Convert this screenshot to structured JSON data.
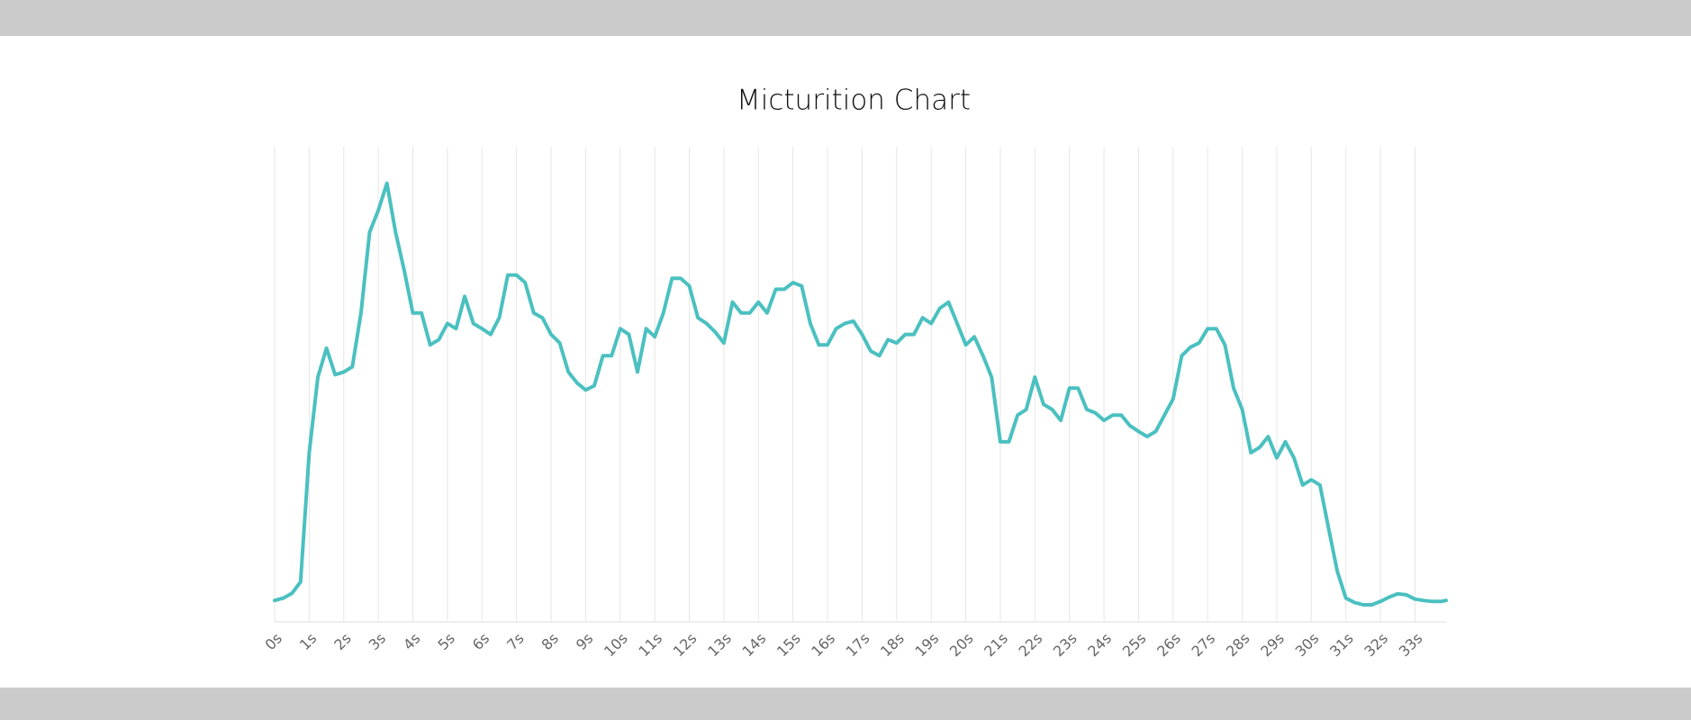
{
  "chart_data": {
    "type": "line",
    "title": "Micturition Chart",
    "x": [
      0,
      0.25,
      0.5,
      0.75,
      1,
      1.25,
      1.5,
      1.75,
      2,
      2.25,
      2.5,
      2.75,
      3,
      3.25,
      3.5,
      3.75,
      4,
      4.25,
      4.5,
      4.75,
      5,
      5.25,
      5.5,
      5.75,
      6,
      6.25,
      6.5,
      6.75,
      7,
      7.25,
      7.5,
      7.75,
      8,
      8.25,
      8.5,
      8.75,
      9,
      9.25,
      9.5,
      9.75,
      10,
      10.25,
      10.5,
      10.75,
      11,
      11.25,
      11.5,
      11.75,
      12,
      12.25,
      12.5,
      12.75,
      13,
      13.25,
      13.5,
      13.75,
      14,
      14.25,
      14.5,
      14.75,
      15,
      15.25,
      15.5,
      15.75,
      16,
      16.25,
      16.5,
      16.75,
      17,
      17.25,
      17.5,
      17.75,
      18,
      18.25,
      18.5,
      18.75,
      19,
      19.25,
      19.5,
      19.75,
      20,
      20.25,
      20.5,
      20.75,
      21,
      21.25,
      21.5,
      21.75,
      22,
      22.25,
      22.5,
      22.75,
      23,
      23.25,
      23.5,
      23.75,
      24,
      24.25,
      24.5,
      24.75,
      25,
      25.25,
      25.5,
      25.75,
      26,
      26.25,
      26.5,
      26.75,
      27,
      27.25,
      27.5,
      27.75,
      28,
      28.25,
      28.5,
      28.75,
      29,
      29.25,
      29.5,
      29.75,
      30,
      30.25,
      30.5,
      30.75,
      31,
      31.25,
      31.5,
      31.75,
      32,
      32.25,
      32.5,
      32.75,
      33,
      33.25,
      33.5,
      33.75,
      33.9
    ],
    "values": [
      4.5,
      5,
      6,
      8.4,
      35.6,
      51.5,
      57.6,
      52,
      52.6,
      53.7,
      65,
      82,
      86.6,
      92.3,
      82,
      74,
      65,
      65,
      58.3,
      59.4,
      62.8,
      61.7,
      68.5,
      62.8,
      61.7,
      60.5,
      64,
      73,
      73,
      71.4,
      65,
      64,
      60.5,
      58.7,
      52.6,
      50.3,
      48.8,
      49.7,
      56,
      56,
      61.7,
      60.5,
      52.6,
      61.7,
      60,
      65,
      72.3,
      72.3,
      70.7,
      64,
      62.8,
      61,
      58.7,
      67.3,
      65,
      65,
      67.3,
      65,
      70,
      70,
      71.4,
      70.7,
      62.8,
      58.3,
      58.3,
      61.7,
      62.8,
      63.3,
      60.5,
      57,
      56,
      59.4,
      58.7,
      60.5,
      60.5,
      64,
      62.8,
      66,
      67.3,
      62.8,
      58.3,
      60,
      56,
      51.5,
      37.9,
      37.9,
      43.5,
      44.7,
      51.5,
      45.8,
      44.7,
      42.4,
      49.2,
      49.2,
      44.7,
      44,
      42.4,
      43.5,
      43.5,
      41.3,
      40.1,
      39,
      40.1,
      43.5,
      46.9,
      56,
      57.8,
      58.7,
      61.7,
      61.7,
      58.3,
      49.2,
      44.7,
      35.6,
      36.7,
      39,
      34.5,
      37.9,
      34.5,
      28.8,
      29.9,
      28.8,
      19.7,
      10.7,
      5,
      4.1,
      3.6,
      3.6,
      4.3,
      5.2,
      5.9,
      5.7,
      4.8,
      4.5,
      4.3,
      4.3,
      4.5
    ],
    "color": "#4bc0c0",
    "xlim": [
      0,
      33.9
    ],
    "ylim": [
      0,
      100
    ],
    "xticks": [
      {
        "value": 0,
        "label": "0s"
      },
      {
        "value": 1,
        "label": "1s"
      },
      {
        "value": 2,
        "label": "2s"
      },
      {
        "value": 3,
        "label": "3s"
      },
      {
        "value": 4,
        "label": "4s"
      },
      {
        "value": 5,
        "label": "5s"
      },
      {
        "value": 6,
        "label": "6s"
      },
      {
        "value": 7,
        "label": "7s"
      },
      {
        "value": 8,
        "label": "8s"
      },
      {
        "value": 9,
        "label": "9s"
      },
      {
        "value": 10,
        "label": "10s"
      },
      {
        "value": 11,
        "label": "11s"
      },
      {
        "value": 12,
        "label": "12s"
      },
      {
        "value": 13,
        "label": "13s"
      },
      {
        "value": 14,
        "label": "14s"
      },
      {
        "value": 15,
        "label": "15s"
      },
      {
        "value": 16,
        "label": "16s"
      },
      {
        "value": 17,
        "label": "17s"
      },
      {
        "value": 18,
        "label": "18s"
      },
      {
        "value": 19,
        "label": "19s"
      },
      {
        "value": 20,
        "label": "20s"
      },
      {
        "value": 21,
        "label": "21s"
      },
      {
        "value": 22,
        "label": "22s"
      },
      {
        "value": 23,
        "label": "23s"
      },
      {
        "value": 24,
        "label": "24s"
      },
      {
        "value": 25,
        "label": "25s"
      },
      {
        "value": 26,
        "label": "26s"
      },
      {
        "value": 27,
        "label": "27s"
      },
      {
        "value": 28,
        "label": "28s"
      },
      {
        "value": 29,
        "label": "29s"
      },
      {
        "value": 30,
        "label": "30s"
      },
      {
        "value": 31,
        "label": "31s"
      },
      {
        "value": 32,
        "label": "32s"
      },
      {
        "value": 33,
        "label": "33s"
      }
    ],
    "grid": true
  }
}
